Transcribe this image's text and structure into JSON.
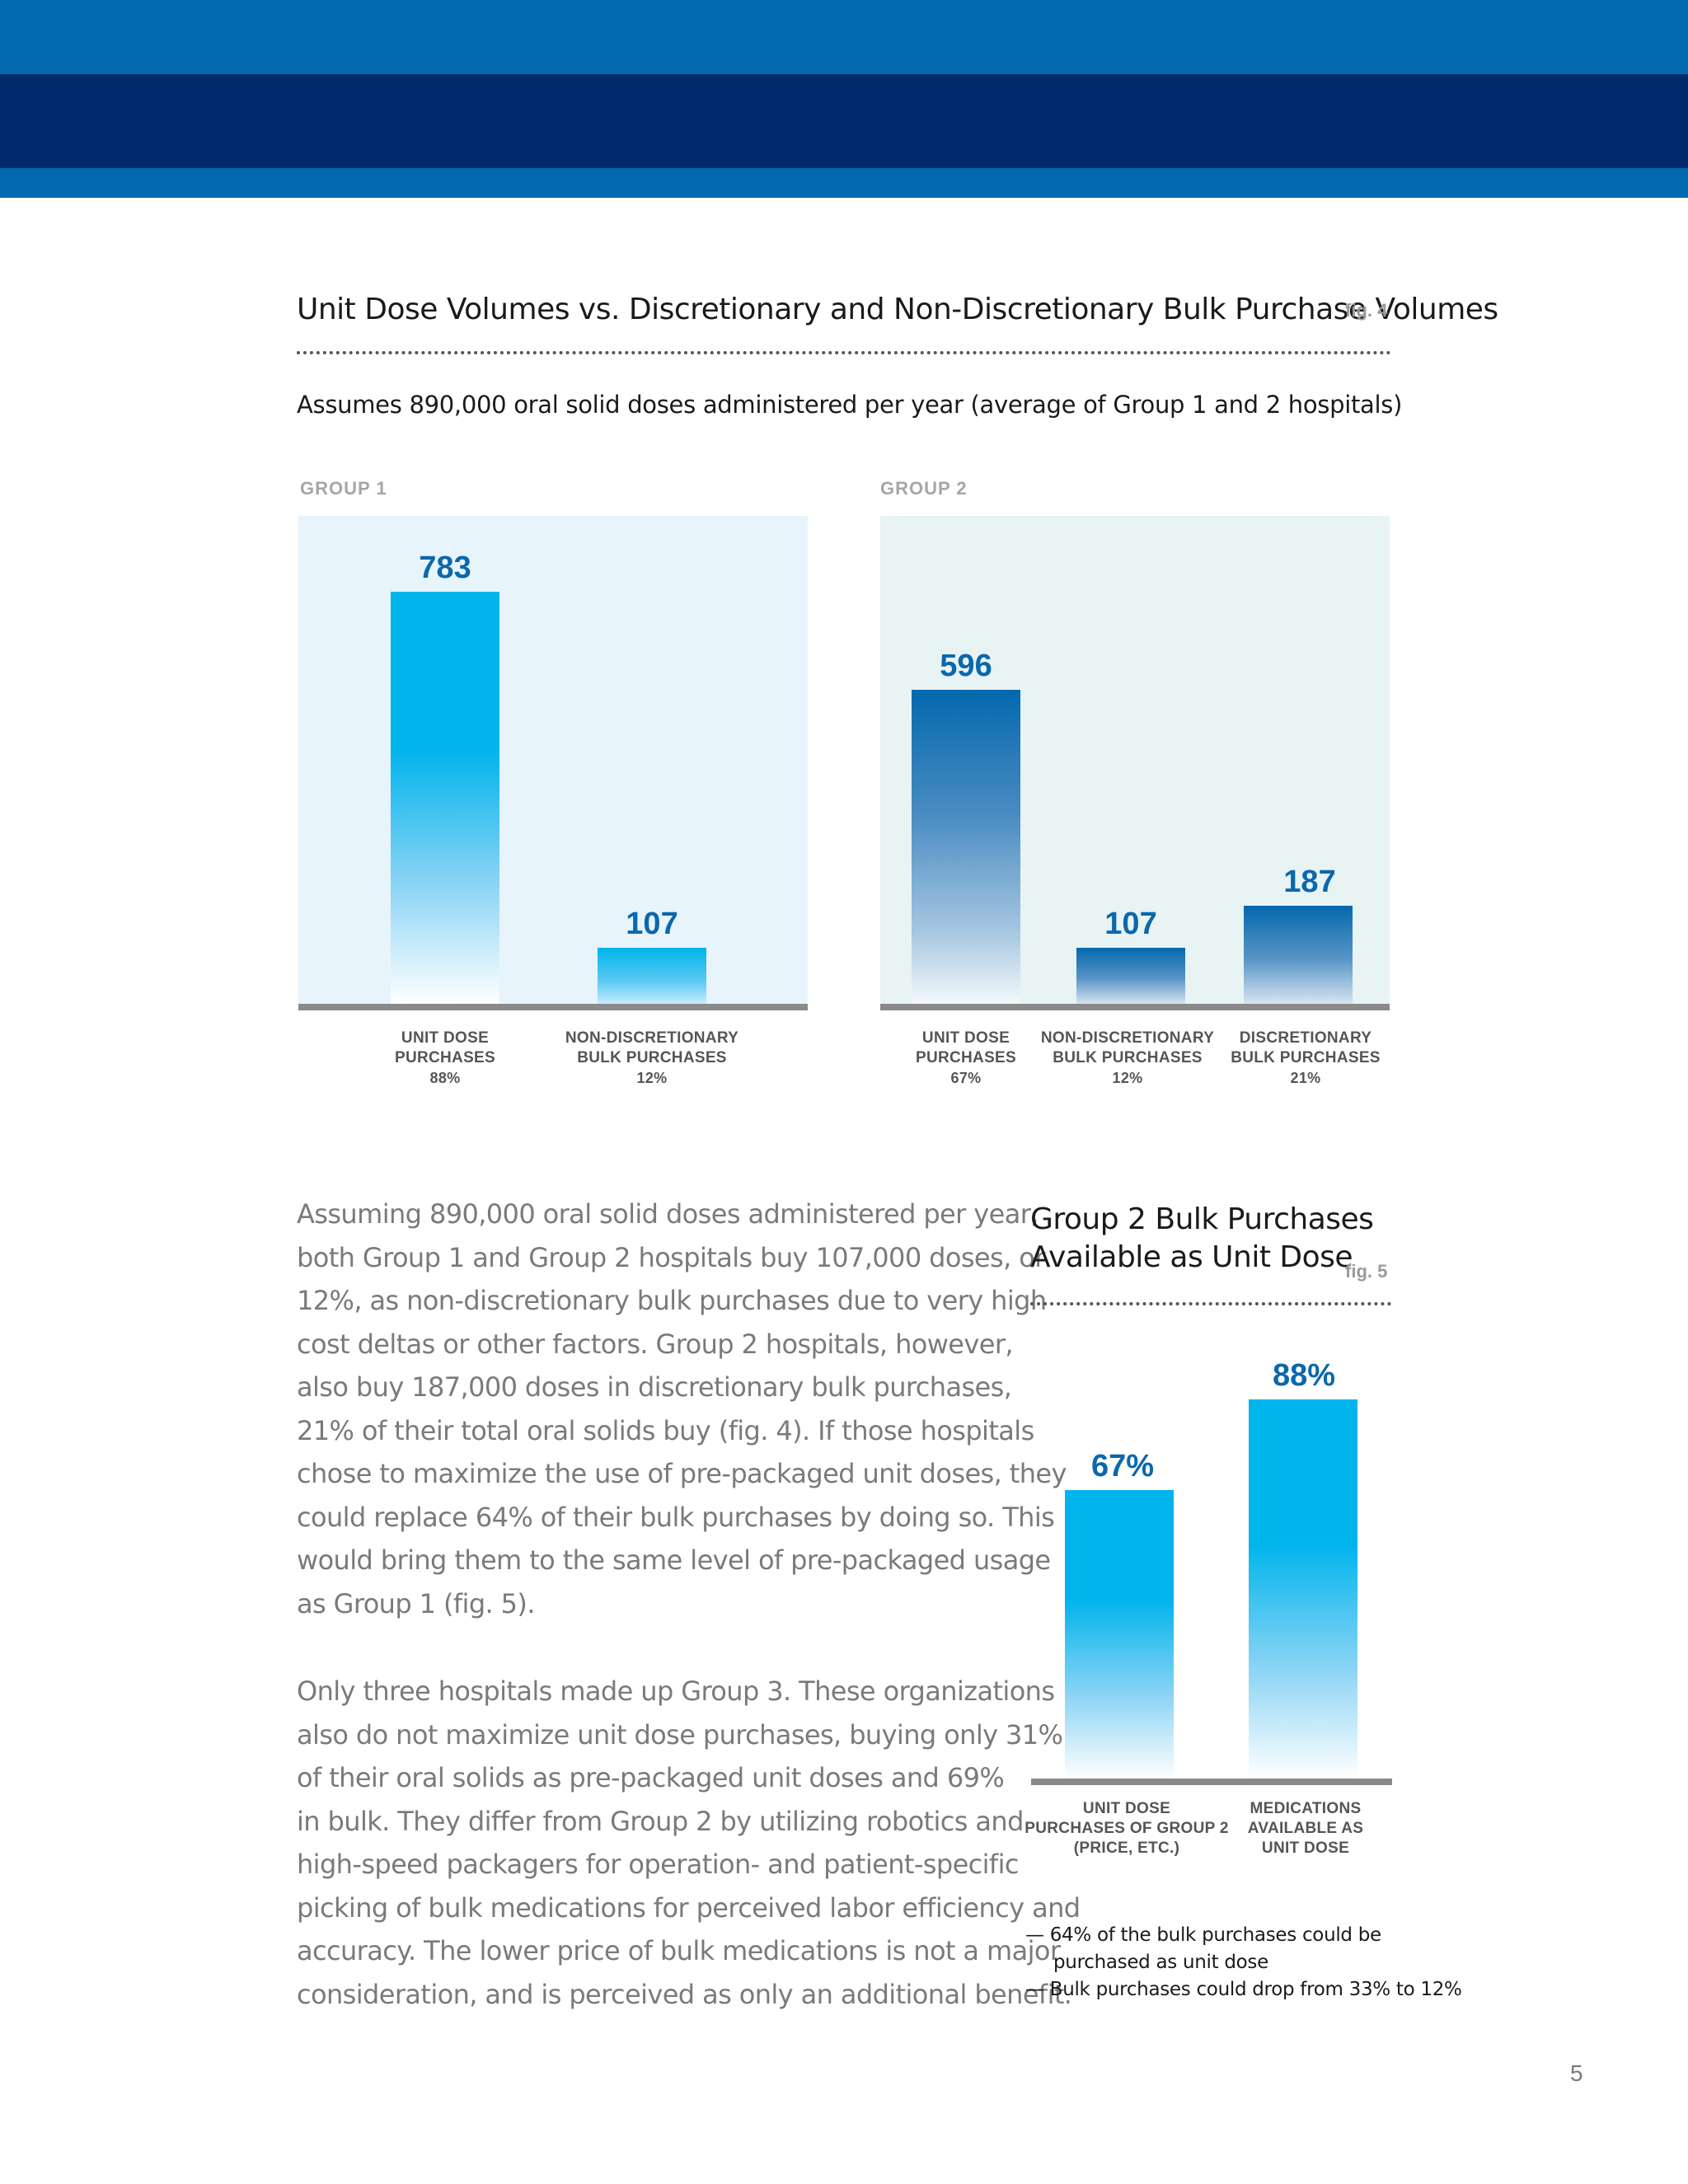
{
  "colors": {
    "header_blue": "#0369ae",
    "header_navy": "#002a6b",
    "bar_light": "#00b4ec",
    "bar_dark": "#0468ad",
    "panel1_bg": "#e8f4fb",
    "panel2_bg": "#e8f3f3",
    "value_text": "#0a68ad"
  },
  "fig4": {
    "title": "Unit Dose Volumes vs. Discretionary and Non-Discretionary Bulk Purchase Volumes",
    "fig_label": "fig. 4",
    "assumption": "Assumes 890,000 oral solid doses administered per year (average of Group 1 and 2 hospitals)"
  },
  "fig5": {
    "title_line1": "Group 2 Bulk Purchases",
    "title_line2": "Available as Unit Dose",
    "fig_label": "fig. 5"
  },
  "chart_data": [
    {
      "type": "bar",
      "title": "GROUP 1",
      "categories": [
        "UNIT DOSE PURCHASES",
        "NON-DISCRETIONARY BULK PURCHASES"
      ],
      "category_lines": [
        [
          "UNIT DOSE",
          "PURCHASES"
        ],
        [
          "NON-DISCRETIONARY",
          "BULK PURCHASES"
        ]
      ],
      "percent_labels": [
        "88%",
        "12%"
      ],
      "values": [
        783,
        107
      ],
      "value_labels": [
        "783",
        "107"
      ],
      "ylim": [
        0,
        800
      ]
    },
    {
      "type": "bar",
      "title": "GROUP 2",
      "categories": [
        "UNIT DOSE PURCHASES",
        "NON-DISCRETIONARY BULK PURCHASES",
        "DISCRETIONARY BULK PURCHASES"
      ],
      "category_lines": [
        [
          "UNIT DOSE",
          "PURCHASES"
        ],
        [
          "NON-DISCRETIONARY",
          "BULK PURCHASES"
        ],
        [
          "DISCRETIONARY",
          "BULK PURCHASES"
        ]
      ],
      "percent_labels": [
        "67%",
        "12%",
        "21%"
      ],
      "values": [
        596,
        107,
        187
      ],
      "value_labels": [
        "596",
        "107",
        "187"
      ],
      "ylim": [
        0,
        800
      ]
    },
    {
      "type": "bar",
      "title": "Group 2 Bulk Purchases Available as Unit Dose",
      "categories": [
        "UNIT DOSE PURCHASES OF GROUP 2 (PRICE, ETC.)",
        "MEDICATIONS AVAILABLE AS UNIT DOSE"
      ],
      "category_lines": [
        [
          "UNIT DOSE",
          "PURCHASES OF GROUP 2",
          "(PRICE, ETC.)"
        ],
        [
          "MEDICATIONS",
          "AVAILABLE AS",
          "UNIT DOSE"
        ]
      ],
      "values": [
        67,
        88
      ],
      "value_labels": [
        "67%",
        "88%"
      ],
      "ylim": [
        0,
        100
      ]
    }
  ],
  "body_paragraph1": [
    "Assuming 890,000 oral solid doses administered per year,",
    "both Group 1 and Group 2 hospitals buy 107,000 doses, or",
    "12%, as non-discretionary bulk purchases due to very high",
    "cost deltas or other factors. Group 2 hospitals, however,",
    "also buy 187,000 doses in discretionary bulk purchases,",
    "21% of their total oral solids buy (fig. 4). If those hospitals",
    "chose to maximize the use of pre-packaged unit doses, they",
    "could replace 64% of their bulk purchases by doing so. This",
    "would bring them to the same level of pre-packaged usage",
    "as Group 1 (fig. 5)."
  ],
  "body_paragraph2": [
    "Only three hospitals made up Group 3. These organizations",
    "also do not maximize unit dose purchases, buying only 31%",
    "of their oral solids as pre-packaged unit doses and 69%",
    "in bulk. They differ from Group 2 by utilizing robotics and",
    "high-speed packagers for operation- and patient-specific",
    "picking of bulk medications for perceived labor efficiency and",
    "accuracy. The lower price of bulk medications is not a major",
    "consideration, and is perceived as only an additional benefit."
  ],
  "notes": {
    "note1_line1": "— 64% of the bulk purchases could be",
    "note1_line2": "purchased as unit dose",
    "note2": "— Bulk purchases could drop from 33% to 12%"
  },
  "page_number": "5"
}
